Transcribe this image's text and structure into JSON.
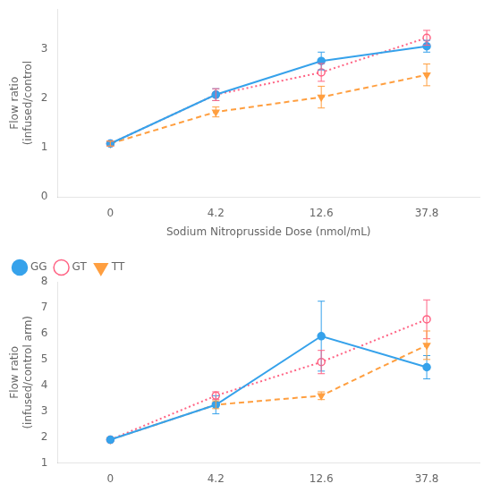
{
  "chart_data": [
    {
      "type": "line",
      "categories": [
        "0",
        "4.2",
        "12.6",
        "37.8"
      ],
      "series": [
        {
          "color": "#36a2eb",
          "line_style": "solid",
          "marker": "circle",
          "values": [
            1.08,
            2.07,
            2.75,
            3.05
          ],
          "errors": [
            0.05,
            0.12,
            0.18,
            0.12
          ]
        },
        {
          "color": "#ff6384",
          "line_style": "dotted",
          "marker": "circle_open",
          "values": [
            1.08,
            2.07,
            2.52,
            3.22
          ],
          "errors": [
            0.05,
            0.12,
            0.18,
            0.15
          ]
        },
        {
          "color": "#ff9f40",
          "line_style": "dashed",
          "marker": "triangle_down",
          "values": [
            1.08,
            1.72,
            2.02,
            2.47
          ],
          "errors": [
            0.05,
            0.1,
            0.22,
            0.22
          ]
        }
      ],
      "xlabel": "Sodium Nitroprusside Dose (nmol/mL)",
      "ylabel": "Flow ratio\n(infused/control",
      "ylim": [
        0,
        3.8
      ],
      "yticks": [
        0,
        1,
        2,
        3
      ],
      "grid": false
    },
    {
      "type": "line",
      "categories": [
        "0",
        "4.2",
        "12.6",
        "37.8"
      ],
      "series": [
        {
          "name": "GG",
          "color": "#36a2eb",
          "line_style": "solid",
          "marker": "circle",
          "values": [
            1.9,
            3.25,
            5.9,
            4.7
          ],
          "errors": [
            null,
            0.35,
            1.35,
            0.45
          ]
        },
        {
          "name": "GT",
          "color": "#ff6384",
          "line_style": "dotted",
          "marker": "circle_open",
          "values": [
            1.9,
            3.6,
            4.9,
            6.55
          ],
          "errors": [
            null,
            0.15,
            0.45,
            0.75
          ]
        },
        {
          "name": "TT",
          "color": "#ff9f40",
          "line_style": "dashed",
          "marker": "triangle_down",
          "values": [
            1.9,
            3.25,
            3.6,
            5.55
          ],
          "errors": [
            null,
            0.15,
            0.15,
            0.55
          ]
        }
      ],
      "ylabel": "Flow ratio\n(infused/control arm)",
      "ylim": [
        1,
        8
      ],
      "yticks": [
        1,
        2,
        3,
        4,
        5,
        6,
        7,
        8
      ],
      "grid": false,
      "legend": "upper left"
    }
  ]
}
